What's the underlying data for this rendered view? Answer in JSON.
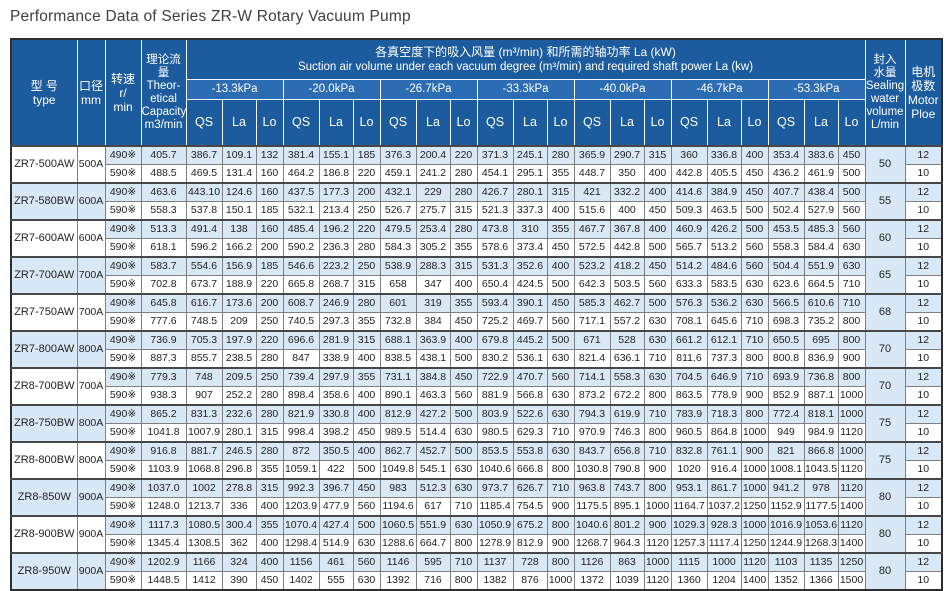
{
  "page": {
    "title": "Performance Data of Series ZR-W Rotary Vacuum Pump"
  },
  "colors": {
    "header_blue": "#1c5b9e",
    "band_blue": "#2c6cb2",
    "stripe_blue": "#d8e8f6",
    "grid_gray": "#7f7f7f",
    "heavy_gray": "#474747",
    "outer_border": "#2d2d2d",
    "title_text": "#3f3f3f"
  },
  "header": {
    "type_lines": [
      "型 号",
      "type"
    ],
    "diameter_lines": [
      "口径",
      "mm"
    ],
    "speed_lines": [
      "转速",
      "r/",
      "min"
    ],
    "capacity_lines": [
      "理论流量",
      "Theor-",
      "etical",
      "Capacity",
      "m3/min"
    ],
    "group_zh": "各真空度下的吸入风量 (m³/min) 和所需的轴功率 La (kW)",
    "group_en": "Suction air volume under each vacuum degree (m³/min) and required shaft power La (kw)",
    "pressures": [
      "-13.3kPa",
      "-20.0kPa",
      "-26.7kPa",
      "-33.3kPa",
      "-40.0kPa",
      "-46.7kPa",
      "-53.3kPa"
    ],
    "subcols": [
      "QS",
      "La",
      "Lo"
    ],
    "sealing_lines": [
      "封入",
      "水量",
      "Sealing",
      "water",
      "volume",
      "L/min"
    ],
    "motor_lines": [
      "电机",
      "极数",
      "Motor",
      "Ploe"
    ]
  },
  "pumps": [
    {
      "type": "ZR7-500AW",
      "dia": "500A",
      "sealing": "50",
      "rows": [
        {
          "speed": "490※",
          "capacity": "405.7",
          "motor": "12",
          "values": [
            "386.7",
            "109.1",
            "132",
            "381.4",
            "155.1",
            "185",
            "376.3",
            "200.4",
            "220",
            "371.3",
            "245.1",
            "280",
            "365.9",
            "290.7",
            "315",
            "360",
            "336.8",
            "400",
            "353.4",
            "383.6",
            "450"
          ]
        },
        {
          "speed": "590※",
          "capacity": "488.5",
          "motor": "10",
          "values": [
            "469.5",
            "131.4",
            "160",
            "464.2",
            "186.8",
            "220",
            "459.1",
            "241.2",
            "280",
            "454.1",
            "295.1",
            "355",
            "448.7",
            "350",
            "400",
            "442.8",
            "405.5",
            "450",
            "436.2",
            "461.9",
            "500"
          ]
        }
      ]
    },
    {
      "type": "ZR7-580BW",
      "dia": "600A",
      "sealing": "55",
      "rows": [
        {
          "speed": "490※",
          "capacity": "463.6",
          "motor": "12",
          "values": [
            "443.10",
            "124.6",
            "160",
            "437.5",
            "177.3",
            "200",
            "432.1",
            "229",
            "280",
            "426.7",
            "280.1",
            "315",
            "421",
            "332.2",
            "400",
            "414.6",
            "384.9",
            "450",
            "407.7",
            "438.4",
            "500"
          ]
        },
        {
          "speed": "590※",
          "capacity": "558.3",
          "motor": "10",
          "values": [
            "537.8",
            "150.1",
            "185",
            "532.1",
            "213.4",
            "250",
            "526.7",
            "275.7",
            "315",
            "521.3",
            "337.3",
            "400",
            "515.6",
            "400",
            "450",
            "509.3",
            "463.5",
            "500",
            "502.4",
            "527.9",
            "560"
          ]
        }
      ]
    },
    {
      "type": "ZR7-600AW",
      "dia": "600A",
      "sealing": "60",
      "rows": [
        {
          "speed": "490※",
          "capacity": "513.3",
          "motor": "12",
          "values": [
            "491.4",
            "138",
            "160",
            "485.4",
            "196.2",
            "220",
            "479.5",
            "253.4",
            "280",
            "473.8",
            "310",
            "355",
            "467.7",
            "367.8",
            "400",
            "460.9",
            "426.2",
            "500",
            "453.5",
            "485.3",
            "560"
          ]
        },
        {
          "speed": "590※",
          "capacity": "618.1",
          "motor": "10",
          "values": [
            "596.2",
            "166.2",
            "200",
            "590.2",
            "236.3",
            "280",
            "584.3",
            "305.2",
            "355",
            "578.6",
            "373.4",
            "450",
            "572.5",
            "442.8",
            "500",
            "565.7",
            "513.2",
            "560",
            "558.3",
            "584.4",
            "630"
          ]
        }
      ]
    },
    {
      "type": "ZR7-700AW",
      "dia": "700A",
      "sealing": "65",
      "rows": [
        {
          "speed": "490※",
          "capacity": "583.7",
          "motor": "12",
          "values": [
            "554.6",
            "156.9",
            "185",
            "546.6",
            "223.2",
            "250",
            "538.9",
            "288.3",
            "315",
            "531.3",
            "352.6",
            "400",
            "523.2",
            "418.2",
            "450",
            "514.2",
            "484.6",
            "560",
            "504.4",
            "551.9",
            "630"
          ]
        },
        {
          "speed": "590※",
          "capacity": "702.8",
          "motor": "10",
          "values": [
            "673.7",
            "188.9",
            "220",
            "665.8",
            "268.7",
            "315",
            "658",
            "347",
            "400",
            "650.4",
            "424.5",
            "500",
            "642.3",
            "503.5",
            "560",
            "633.3",
            "583.5",
            "630",
            "623.6",
            "664.5",
            "710"
          ]
        }
      ]
    },
    {
      "type": "ZR7-750AW",
      "dia": "700A",
      "sealing": "68",
      "rows": [
        {
          "speed": "490※",
          "capacity": "645.8",
          "motor": "12",
          "values": [
            "616.7",
            "173.6",
            "200",
            "608.7",
            "246.9",
            "280",
            "601",
            "319",
            "355",
            "593.4",
            "390.1",
            "450",
            "585.3",
            "462.7",
            "500",
            "576.3",
            "536.2",
            "630",
            "566.5",
            "610.6",
            "710"
          ]
        },
        {
          "speed": "590※",
          "capacity": "777.6",
          "motor": "10",
          "values": [
            "748.5",
            "209",
            "250",
            "740.5",
            "297.3",
            "355",
            "732.8",
            "384",
            "450",
            "725.2",
            "469.7",
            "560",
            "717.1",
            "557.2",
            "630",
            "708.1",
            "645.6",
            "710",
            "698.3",
            "735.2",
            "800"
          ]
        }
      ]
    },
    {
      "type": "ZR7-800AW",
      "dia": "800A",
      "sealing": "70",
      "rows": [
        {
          "speed": "490※",
          "capacity": "736.9",
          "motor": "12",
          "values": [
            "705.3",
            "197.9",
            "220",
            "696.6",
            "281.9",
            "315",
            "688.1",
            "363.9",
            "400",
            "679.8",
            "445.2",
            "500",
            "671",
            "528",
            "630",
            "661.2",
            "612.1",
            "710",
            "650.5",
            "695",
            "800"
          ]
        },
        {
          "speed": "590※",
          "capacity": "887.3",
          "motor": "10",
          "values": [
            "855.7",
            "238.5",
            "280",
            "847",
            "338.9",
            "400",
            "838.5",
            "438.1",
            "500",
            "830.2",
            "536.1",
            "630",
            "821.4",
            "636.1",
            "710",
            "811.6",
            "737.3",
            "800",
            "800.8",
            "836.9",
            "900"
          ]
        }
      ]
    },
    {
      "type": "ZR8-700BW",
      "dia": "700A",
      "sealing": "70",
      "rows": [
        {
          "speed": "490※",
          "capacity": "779.3",
          "motor": "12",
          "values": [
            "748",
            "209.5",
            "250",
            "739.4",
            "297.9",
            "355",
            "731.1",
            "384.8",
            "450",
            "722.9",
            "470.7",
            "560",
            "714.1",
            "558.3",
            "630",
            "704.5",
            "646.9",
            "710",
            "693.9",
            "736.8",
            "800"
          ]
        },
        {
          "speed": "590※",
          "capacity": "938.3",
          "motor": "10",
          "values": [
            "907",
            "252.2",
            "280",
            "898.4",
            "358.6",
            "400",
            "890.1",
            "463.3",
            "560",
            "881.9",
            "566.8",
            "630",
            "873.2",
            "672.2",
            "800",
            "863.5",
            "778.9",
            "900",
            "852.9",
            "887.1",
            "1000"
          ]
        }
      ]
    },
    {
      "type": "ZR8-750BW",
      "dia": "800A",
      "sealing": "75",
      "rows": [
        {
          "speed": "490※",
          "capacity": "865.2",
          "motor": "12",
          "values": [
            "831.3",
            "232.6",
            "280",
            "821.9",
            "330.8",
            "400",
            "812.9",
            "427.2",
            "500",
            "803.9",
            "522.6",
            "630",
            "794.3",
            "619.9",
            "710",
            "783.9",
            "718.3",
            "800",
            "772.4",
            "818.1",
            "1000"
          ]
        },
        {
          "speed": "590※",
          "capacity": "1041.8",
          "motor": "10",
          "values": [
            "1007.9",
            "280.1",
            "315",
            "998.4",
            "398.2",
            "450",
            "989.5",
            "514.4",
            "630",
            "980.5",
            "629.3",
            "710",
            "970.9",
            "746.3",
            "800",
            "960.5",
            "864.8",
            "1000",
            "949",
            "984.9",
            "1120"
          ]
        }
      ]
    },
    {
      "type": "ZR8-800BW",
      "dia": "800A",
      "sealing": "75",
      "rows": [
        {
          "speed": "490※",
          "capacity": "916.8",
          "motor": "12",
          "values": [
            "881.7",
            "246.5",
            "280",
            "872",
            "350.5",
            "400",
            "862.7",
            "452.7",
            "500",
            "853.5",
            "553.8",
            "630",
            "843.7",
            "656.8",
            "710",
            "832.8",
            "761.1",
            "900",
            "821",
            "866.8",
            "1000"
          ]
        },
        {
          "speed": "590※",
          "capacity": "1103.9",
          "motor": "10",
          "values": [
            "1068.8",
            "296.8",
            "355",
            "1059.1",
            "422",
            "500",
            "1049.8",
            "545.1",
            "630",
            "1040.6",
            "666.8",
            "800",
            "1030.8",
            "790.8",
            "900",
            "1020",
            "916.4",
            "1000",
            "1008.1",
            "1043.5",
            "1120"
          ]
        }
      ]
    },
    {
      "type": "ZR8-850W",
      "dia": "900A",
      "sealing": "80",
      "rows": [
        {
          "speed": "490※",
          "capacity": "1037.0",
          "motor": "12",
          "values": [
            "1002",
            "278.8",
            "315",
            "992.3",
            "396.7",
            "450",
            "983",
            "512.3",
            "630",
            "973.7",
            "626.7",
            "710",
            "963.8",
            "743.7",
            "800",
            "953.1",
            "861.7",
            "1000",
            "941.2",
            "978",
            "1120"
          ]
        },
        {
          "speed": "590※",
          "capacity": "1248.0",
          "motor": "10",
          "values": [
            "1213.7",
            "336",
            "400",
            "1203.9",
            "477.9",
            "560",
            "1194.6",
            "617",
            "710",
            "1185.4",
            "754.5",
            "900",
            "1175.5",
            "895.1",
            "1000",
            "1164.7",
            "1037.2",
            "1250",
            "1152.9",
            "1177.5",
            "1400"
          ]
        }
      ]
    },
    {
      "type": "ZR8-900BW",
      "dia": "900A",
      "sealing": "80",
      "rows": [
        {
          "speed": "490※",
          "capacity": "1117.3",
          "motor": "12",
          "values": [
            "1080.5",
            "300.4",
            "355",
            "1070.4",
            "427.4",
            "500",
            "1060.5",
            "551.9",
            "630",
            "1050.9",
            "675.2",
            "800",
            "1040.6",
            "801.2",
            "900",
            "1029.3",
            "928.3",
            "1000",
            "1016.9",
            "1053.6",
            "1120"
          ]
        },
        {
          "speed": "590※",
          "capacity": "1345.4",
          "motor": "10",
          "values": [
            "1308.5",
            "362",
            "400",
            "1298.4",
            "514.9",
            "630",
            "1288.6",
            "664.7",
            "800",
            "1278.9",
            "812.9",
            "900",
            "1268.7",
            "964.3",
            "1120",
            "1257.3",
            "1117.4",
            "1250",
            "1244.9",
            "1268.3",
            "1400"
          ]
        }
      ]
    },
    {
      "type": "ZR8-950W",
      "dia": "900A",
      "sealing": "80",
      "rows": [
        {
          "speed": "490※",
          "capacity": "1202.9",
          "motor": "12",
          "values": [
            "1166",
            "324",
            "400",
            "1156",
            "461",
            "560",
            "1146",
            "595",
            "710",
            "1137",
            "728",
            "800",
            "1126",
            "863",
            "1000",
            "1115",
            "1000",
            "1120",
            "1103",
            "1135",
            "1250"
          ]
        },
        {
          "speed": "590※",
          "capacity": "1448.5",
          "motor": "10",
          "values": [
            "1412",
            "390",
            "450",
            "1402",
            "555",
            "630",
            "1392",
            "716",
            "800",
            "1382",
            "876",
            "1000",
            "1372",
            "1039",
            "1120",
            "1360",
            "1204",
            "1400",
            "1352",
            "1366",
            "1500"
          ]
        }
      ]
    }
  ]
}
